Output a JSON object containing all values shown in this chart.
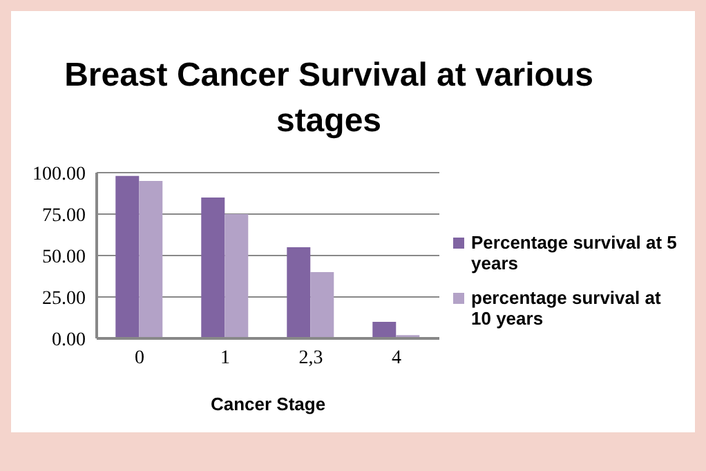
{
  "chart_data": {
    "type": "bar",
    "title": "Breast Cancer Survival at various stages",
    "xlabel": "Cancer Stage",
    "categories": [
      "0",
      "1",
      "2,3",
      "4"
    ],
    "series": [
      {
        "name": "Percentage survival at 5 years",
        "color": "#8064a2",
        "values": [
          98,
          85,
          55,
          10
        ]
      },
      {
        "name": "percentage survival at 10 years",
        "color": "#b3a2c7",
        "values": [
          95,
          75,
          40,
          2
        ]
      }
    ],
    "ylim": [
      0,
      100
    ],
    "yticks": [
      {
        "value": 0,
        "label": "0.00"
      },
      {
        "value": 25,
        "label": "25.00"
      },
      {
        "value": 50,
        "label": "50.00"
      },
      {
        "value": 75,
        "label": "75.00"
      },
      {
        "value": 100,
        "label": "100.00"
      }
    ],
    "grid": "y",
    "legend": "right"
  }
}
